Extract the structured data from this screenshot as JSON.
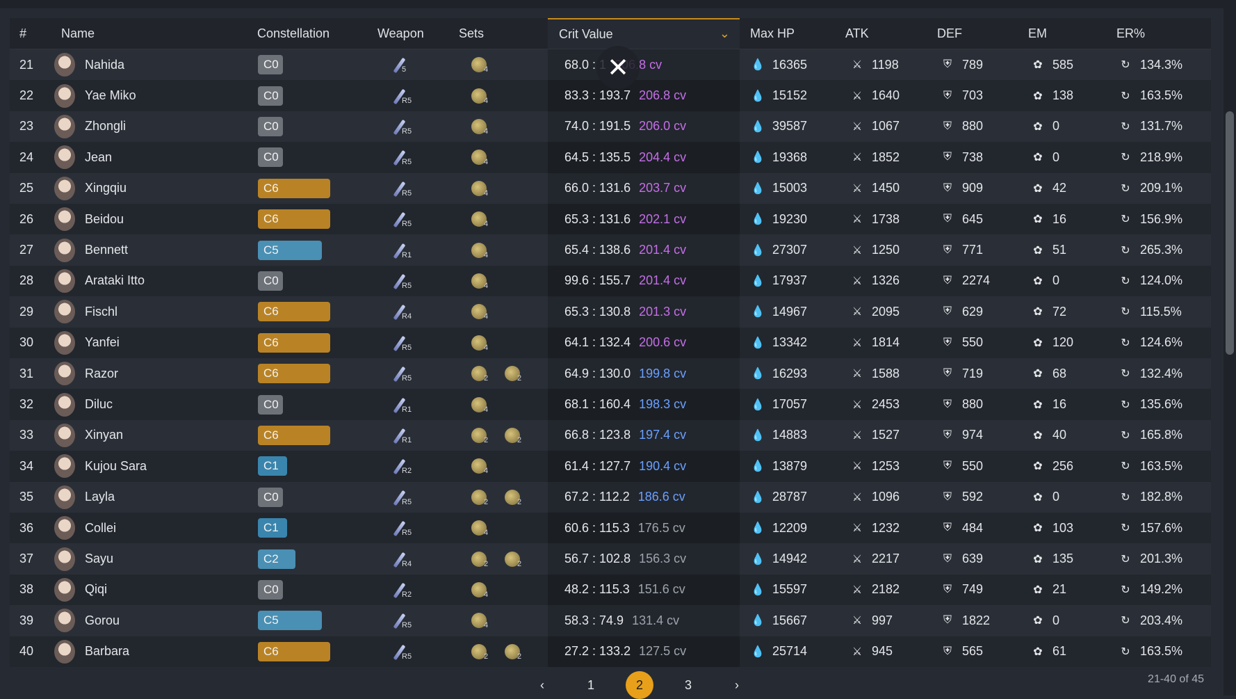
{
  "headers": {
    "num": "#",
    "name": "Name",
    "constellation": "Constellation",
    "weapon": "Weapon",
    "sets": "Sets",
    "crit": "Crit Value",
    "hp": "Max HP",
    "atk": "ATK",
    "def": "DEF",
    "em": "EM",
    "er": "ER%"
  },
  "colors": {
    "c0": "#6d7178",
    "c6": "#b98325",
    "c5": "#4a8fb4",
    "c1": "#3a85ad",
    "c2": "#4a8fb4",
    "cv_high": "#c56ee8",
    "cv_mid": "#6aa0ff",
    "cv_low": "#9ea4ad"
  },
  "rows": [
    {
      "num": "21",
      "name": "Nahida",
      "const": "C0",
      "width": "36",
      "refine": "5",
      "sets": [
        {
          "count": "4"
        }
      ],
      "ratio": "68.0 : 1",
      "cv": "206.8 cv",
      "cvcolor": "high",
      "hp": "16365",
      "atk": "1198",
      "def": "789",
      "em": "585",
      "er": "134.3%"
    },
    {
      "num": "22",
      "name": "Yae Miko",
      "const": "C0",
      "width": "36",
      "refine": "R5",
      "sets": [
        {
          "count": "4"
        }
      ],
      "ratio": "83.3 : 193.7",
      "cv": "206.8 cv",
      "cvcolor": "high",
      "hp": "15152",
      "atk": "1640",
      "def": "703",
      "em": "138",
      "er": "163.5%"
    },
    {
      "num": "23",
      "name": "Zhongli",
      "const": "C0",
      "width": "36",
      "refine": "R5",
      "sets": [
        {
          "count": "4"
        }
      ],
      "ratio": "74.0 : 191.5",
      "cv": "206.0 cv",
      "cvcolor": "high",
      "hp": "39587",
      "atk": "1067",
      "def": "880",
      "em": "0",
      "er": "131.7%"
    },
    {
      "num": "24",
      "name": "Jean",
      "const": "C0",
      "width": "36",
      "refine": "R5",
      "sets": [
        {
          "count": "4"
        }
      ],
      "ratio": "64.5 : 135.5",
      "cv": "204.4 cv",
      "cvcolor": "high",
      "hp": "19368",
      "atk": "1852",
      "def": "738",
      "em": "0",
      "er": "218.9%"
    },
    {
      "num": "25",
      "name": "Xingqiu",
      "const": "C6",
      "width": "104",
      "refine": "R5",
      "sets": [
        {
          "count": "4"
        }
      ],
      "ratio": "66.0 : 131.6",
      "cv": "203.7 cv",
      "cvcolor": "high",
      "hp": "15003",
      "atk": "1450",
      "def": "909",
      "em": "42",
      "er": "209.1%"
    },
    {
      "num": "26",
      "name": "Beidou",
      "const": "C6",
      "width": "104",
      "refine": "R5",
      "sets": [
        {
          "count": "4"
        }
      ],
      "ratio": "65.3 : 131.6",
      "cv": "202.1 cv",
      "cvcolor": "high",
      "hp": "19230",
      "atk": "1738",
      "def": "645",
      "em": "16",
      "er": "156.9%"
    },
    {
      "num": "27",
      "name": "Bennett",
      "const": "C5",
      "width": "92",
      "refine": "R1",
      "sets": [
        {
          "count": "4"
        }
      ],
      "ratio": "65.4 : 138.6",
      "cv": "201.4 cv",
      "cvcolor": "high",
      "hp": "27307",
      "atk": "1250",
      "def": "771",
      "em": "51",
      "er": "265.3%"
    },
    {
      "num": "28",
      "name": "Arataki Itto",
      "const": "C0",
      "width": "36",
      "refine": "R5",
      "sets": [
        {
          "count": "4"
        }
      ],
      "ratio": "99.6 : 155.7",
      "cv": "201.4 cv",
      "cvcolor": "high",
      "hp": "17937",
      "atk": "1326",
      "def": "2274",
      "em": "0",
      "er": "124.0%"
    },
    {
      "num": "29",
      "name": "Fischl",
      "const": "C6",
      "width": "104",
      "refine": "R4",
      "sets": [
        {
          "count": "4"
        }
      ],
      "ratio": "65.3 : 130.8",
      "cv": "201.3 cv",
      "cvcolor": "high",
      "hp": "14967",
      "atk": "2095",
      "def": "629",
      "em": "72",
      "er": "115.5%"
    },
    {
      "num": "30",
      "name": "Yanfei",
      "const": "C6",
      "width": "104",
      "refine": "R5",
      "sets": [
        {
          "count": "4"
        }
      ],
      "ratio": "64.1 : 132.4",
      "cv": "200.6 cv",
      "cvcolor": "high",
      "hp": "13342",
      "atk": "1814",
      "def": "550",
      "em": "120",
      "er": "124.6%"
    },
    {
      "num": "31",
      "name": "Razor",
      "const": "C6",
      "width": "104",
      "refine": "R5",
      "sets": [
        {
          "count": "2"
        },
        {
          "count": "2"
        }
      ],
      "ratio": "64.9 : 130.0",
      "cv": "199.8 cv",
      "cvcolor": "mid",
      "hp": "16293",
      "atk": "1588",
      "def": "719",
      "em": "68",
      "er": "132.4%"
    },
    {
      "num": "32",
      "name": "Diluc",
      "const": "C0",
      "width": "36",
      "refine": "R1",
      "sets": [
        {
          "count": "4"
        }
      ],
      "ratio": "68.1 : 160.4",
      "cv": "198.3 cv",
      "cvcolor": "mid",
      "hp": "17057",
      "atk": "2453",
      "def": "880",
      "em": "16",
      "er": "135.6%"
    },
    {
      "num": "33",
      "name": "Xinyan",
      "const": "C6",
      "width": "104",
      "refine": "R1",
      "sets": [
        {
          "count": "2"
        },
        {
          "count": "2"
        }
      ],
      "ratio": "66.8 : 123.8",
      "cv": "197.4 cv",
      "cvcolor": "mid",
      "hp": "14883",
      "atk": "1527",
      "def": "974",
      "em": "40",
      "er": "165.8%"
    },
    {
      "num": "34",
      "name": "Kujou Sara",
      "const": "C1",
      "width": "42",
      "refine": "R2",
      "sets": [
        {
          "count": "4"
        }
      ],
      "ratio": "61.4 : 127.7",
      "cv": "190.4 cv",
      "cvcolor": "mid",
      "hp": "13879",
      "atk": "1253",
      "def": "550",
      "em": "256",
      "er": "163.5%"
    },
    {
      "num": "35",
      "name": "Layla",
      "const": "C0",
      "width": "36",
      "refine": "R5",
      "sets": [
        {
          "count": "2"
        },
        {
          "count": "2"
        }
      ],
      "ratio": "67.2 : 112.2",
      "cv": "186.6 cv",
      "cvcolor": "mid",
      "hp": "28787",
      "atk": "1096",
      "def": "592",
      "em": "0",
      "er": "182.8%"
    },
    {
      "num": "36",
      "name": "Collei",
      "const": "C1",
      "width": "42",
      "refine": "R5",
      "sets": [
        {
          "count": "4"
        }
      ],
      "ratio": "60.6 : 115.3",
      "cv": "176.5 cv",
      "cvcolor": "low",
      "hp": "12209",
      "atk": "1232",
      "def": "484",
      "em": "103",
      "er": "157.6%"
    },
    {
      "num": "37",
      "name": "Sayu",
      "const": "C2",
      "width": "54",
      "refine": "R4",
      "sets": [
        {
          "count": "2"
        },
        {
          "count": "2"
        }
      ],
      "ratio": "56.7 : 102.8",
      "cv": "156.3 cv",
      "cvcolor": "low",
      "hp": "14942",
      "atk": "2217",
      "def": "639",
      "em": "135",
      "er": "201.3%"
    },
    {
      "num": "38",
      "name": "Qiqi",
      "const": "C0",
      "width": "36",
      "refine": "R2",
      "sets": [
        {
          "count": "4"
        }
      ],
      "ratio": "48.2 : 115.3",
      "cv": "151.6 cv",
      "cvcolor": "low",
      "hp": "15597",
      "atk": "2182",
      "def": "749",
      "em": "21",
      "er": "149.2%"
    },
    {
      "num": "39",
      "name": "Gorou",
      "const": "C5",
      "width": "92",
      "refine": "R5",
      "sets": [
        {
          "count": "4"
        }
      ],
      "ratio": "58.3 : 74.9",
      "cv": "131.4 cv",
      "cvcolor": "low",
      "hp": "15667",
      "atk": "997",
      "def": "1822",
      "em": "0",
      "er": "203.4%"
    },
    {
      "num": "40",
      "name": "Barbara",
      "const": "C6",
      "width": "104",
      "refine": "R5",
      "sets": [
        {
          "count": "2"
        },
        {
          "count": "2"
        }
      ],
      "ratio": "27.2 : 133.2",
      "cv": "127.5 cv",
      "cvcolor": "low",
      "hp": "25714",
      "atk": "945",
      "def": "565",
      "em": "61",
      "er": "163.5%"
    }
  ],
  "pager": {
    "prev": "‹",
    "pages": [
      "1",
      "2",
      "3"
    ],
    "active": "2",
    "next": "›"
  },
  "range": "21-40 of 45",
  "close": "✕"
}
